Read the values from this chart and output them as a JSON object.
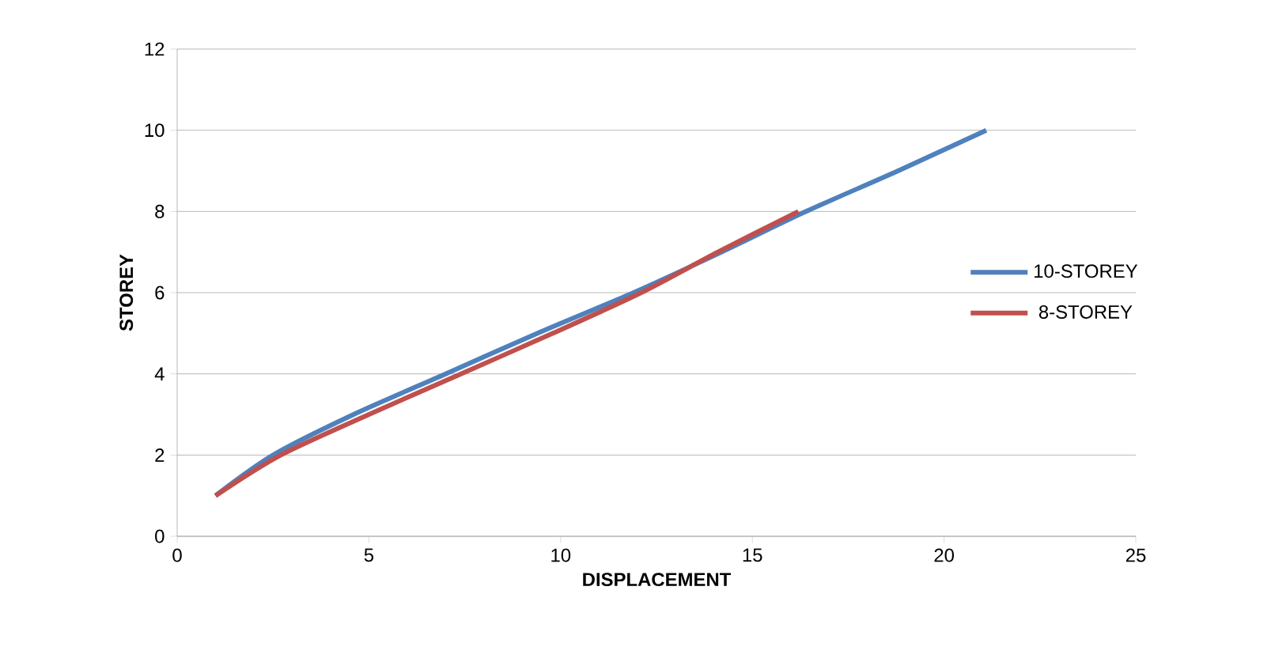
{
  "chart_data": {
    "type": "line",
    "xlabel": "DISPLACEMENT",
    "ylabel": "STOREY",
    "xlim": [
      0,
      25
    ],
    "ylim": [
      0,
      12
    ],
    "xticks": [
      0,
      5,
      10,
      15,
      20,
      25
    ],
    "yticks": [
      0,
      2,
      4,
      6,
      8,
      10,
      12
    ],
    "grid": "y",
    "legend": "right",
    "marker": "none",
    "line_style": "solid",
    "series": [
      {
        "name": "10-STOREY",
        "color": "#4f81bd",
        "x": [
          1,
          2.5,
          4.6,
          7.0,
          9.4,
          11.9,
          14.2,
          16.4,
          18.8,
          21.1
        ],
        "values": [
          1,
          2,
          3,
          4,
          5,
          6,
          7,
          8,
          9,
          10
        ]
      },
      {
        "name": "8-STOREY",
        "color": "#c0504d",
        "x": [
          1,
          2.7,
          5.0,
          7.4,
          9.8,
          12.1,
          14.1,
          16.2
        ],
        "values": [
          1,
          2,
          3,
          4,
          5,
          6,
          7,
          8
        ]
      }
    ]
  }
}
